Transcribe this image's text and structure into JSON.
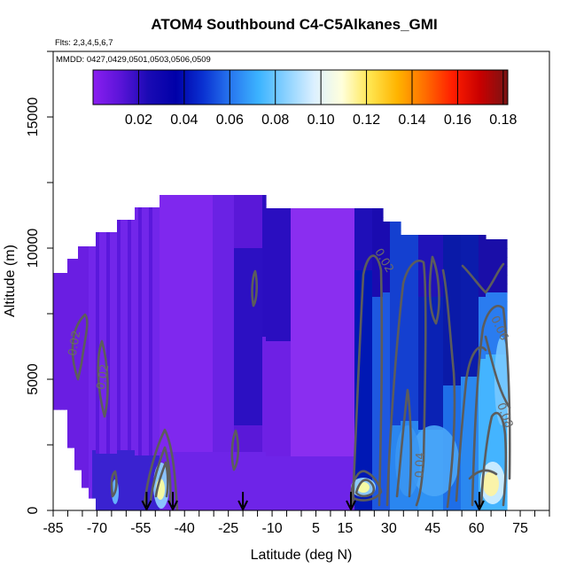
{
  "chart_data": {
    "type": "heatmap",
    "title": "ATOM4 Southbound C4-C5Alkanes_GMI",
    "subtitle_flights": "Flts: 2,3,4,5,6,7",
    "subtitle_dates": "MMDD: 0427,0429,0501,0503,0506,0509",
    "xlabel": "Latitude (deg N)",
    "ylabel": "Altitude (m)",
    "xlim": [
      -85,
      85
    ],
    "ylim": [
      0,
      17500
    ],
    "x_ticks": [
      -85,
      -70,
      -55,
      -40,
      -25,
      -10,
      5,
      15,
      30,
      45,
      60,
      75
    ],
    "y_ticks": [
      0,
      5000,
      10000,
      15000
    ],
    "colorbar": {
      "ticks": [
        "0.02",
        "0.04",
        "0.06",
        "0.08",
        "0.10",
        "0.12",
        "0.14",
        "0.16",
        "0.18"
      ],
      "range": [
        0,
        0.182
      ],
      "colors": [
        "#8a1ef0",
        "#5a14d8",
        "#1a0ab4",
        "#0000a8",
        "#0a32d2",
        "#2878f0",
        "#3cb4ff",
        "#8cd2ff",
        "#dcf0ff",
        "#ffffdc",
        "#ffe650",
        "#ffb400",
        "#ff6e00",
        "#ff1e00",
        "#c80000",
        "#781414"
      ]
    },
    "contour_labels": [
      "0.02",
      "0.02",
      "0.02",
      "0.04",
      "0.06",
      "0.08"
    ],
    "flight_arrow_latitudes": [
      -53,
      -44,
      -20,
      17,
      61
    ],
    "grid": false
  }
}
